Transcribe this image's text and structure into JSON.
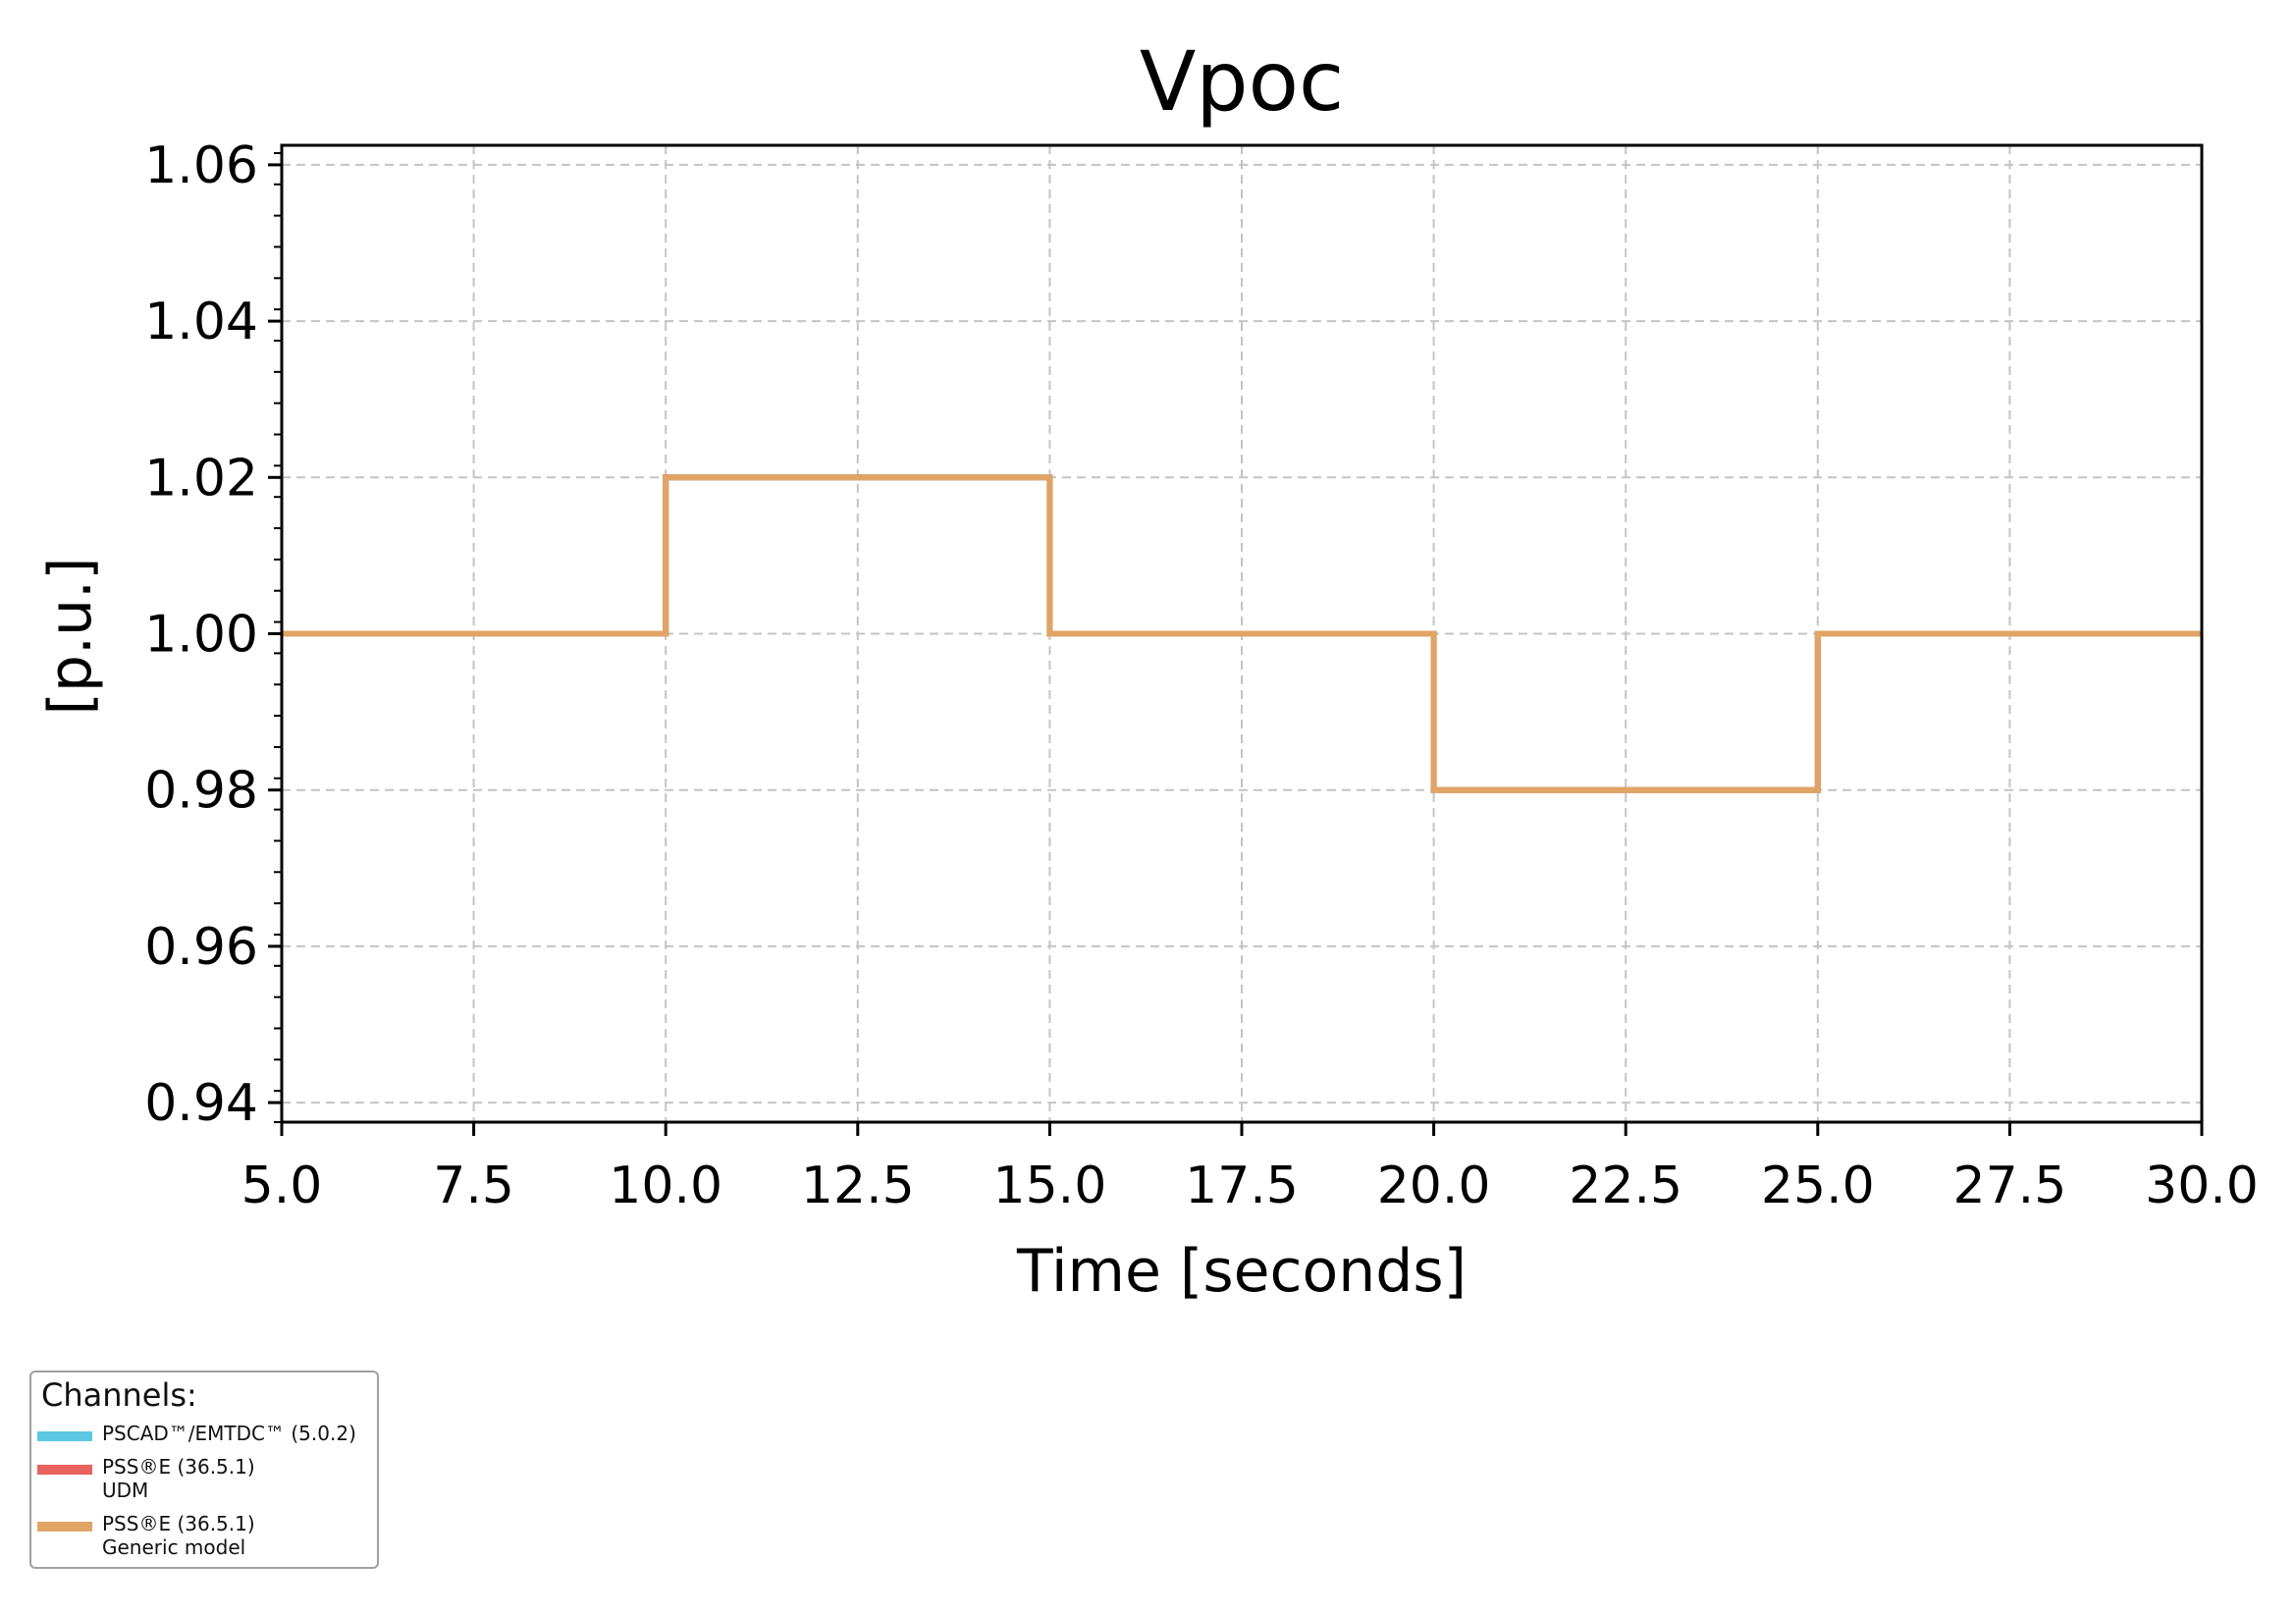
{
  "chart_data": {
    "type": "line",
    "title": "Vpoc",
    "xlabel": "Time [seconds]",
    "ylabel": "[p.u.]",
    "xlim": [
      5.0,
      30.0
    ],
    "ylim": [
      0.9375,
      1.0625
    ],
    "xticks": [
      5.0,
      7.5,
      10.0,
      12.5,
      15.0,
      17.5,
      20.0,
      22.5,
      25.0,
      27.5,
      30.0
    ],
    "xtick_labels": [
      "5.0",
      "7.5",
      "10.0",
      "12.5",
      "15.0",
      "17.5",
      "20.0",
      "22.5",
      "25.0",
      "27.5",
      "30.0"
    ],
    "yticks": [
      0.94,
      0.96,
      0.98,
      1.0,
      1.02,
      1.04,
      1.06
    ],
    "ytick_labels": [
      "0.94",
      "0.96",
      "0.98",
      "1.00",
      "1.02",
      "1.04",
      "1.06"
    ],
    "grid": true,
    "series": [
      {
        "name": "PSCAD™/EMTDC™ (5.0.2)",
        "color": "#5bc8e2",
        "x": [
          5.0,
          10.0,
          10.0,
          15.0,
          15.0,
          20.0,
          20.0,
          25.0,
          25.0,
          30.0
        ],
        "y": [
          1.0,
          1.0,
          1.02,
          1.02,
          1.0,
          1.0,
          0.98,
          0.98,
          1.0,
          1.0
        ]
      },
      {
        "name": "PSS®E (36.5.1)\nUDM",
        "color": "#e8625e",
        "x": [
          5.0,
          10.0,
          10.0,
          15.0,
          15.0,
          20.0,
          20.0,
          25.0,
          25.0,
          30.0
        ],
        "y": [
          1.0,
          1.0,
          1.02,
          1.02,
          1.0,
          1.0,
          0.98,
          0.98,
          1.0,
          1.0
        ]
      },
      {
        "name": "PSS®E (36.5.1)\nGeneric model",
        "color": "#e0a465",
        "x": [
          5.0,
          10.0,
          10.0,
          15.0,
          15.0,
          20.0,
          20.0,
          25.0,
          25.0,
          30.0
        ],
        "y": [
          1.0,
          1.0,
          1.02,
          1.02,
          1.0,
          1.0,
          0.98,
          0.98,
          1.0,
          1.0
        ]
      }
    ],
    "legend": {
      "title": "Channels:",
      "placement": "bottom-left"
    }
  }
}
